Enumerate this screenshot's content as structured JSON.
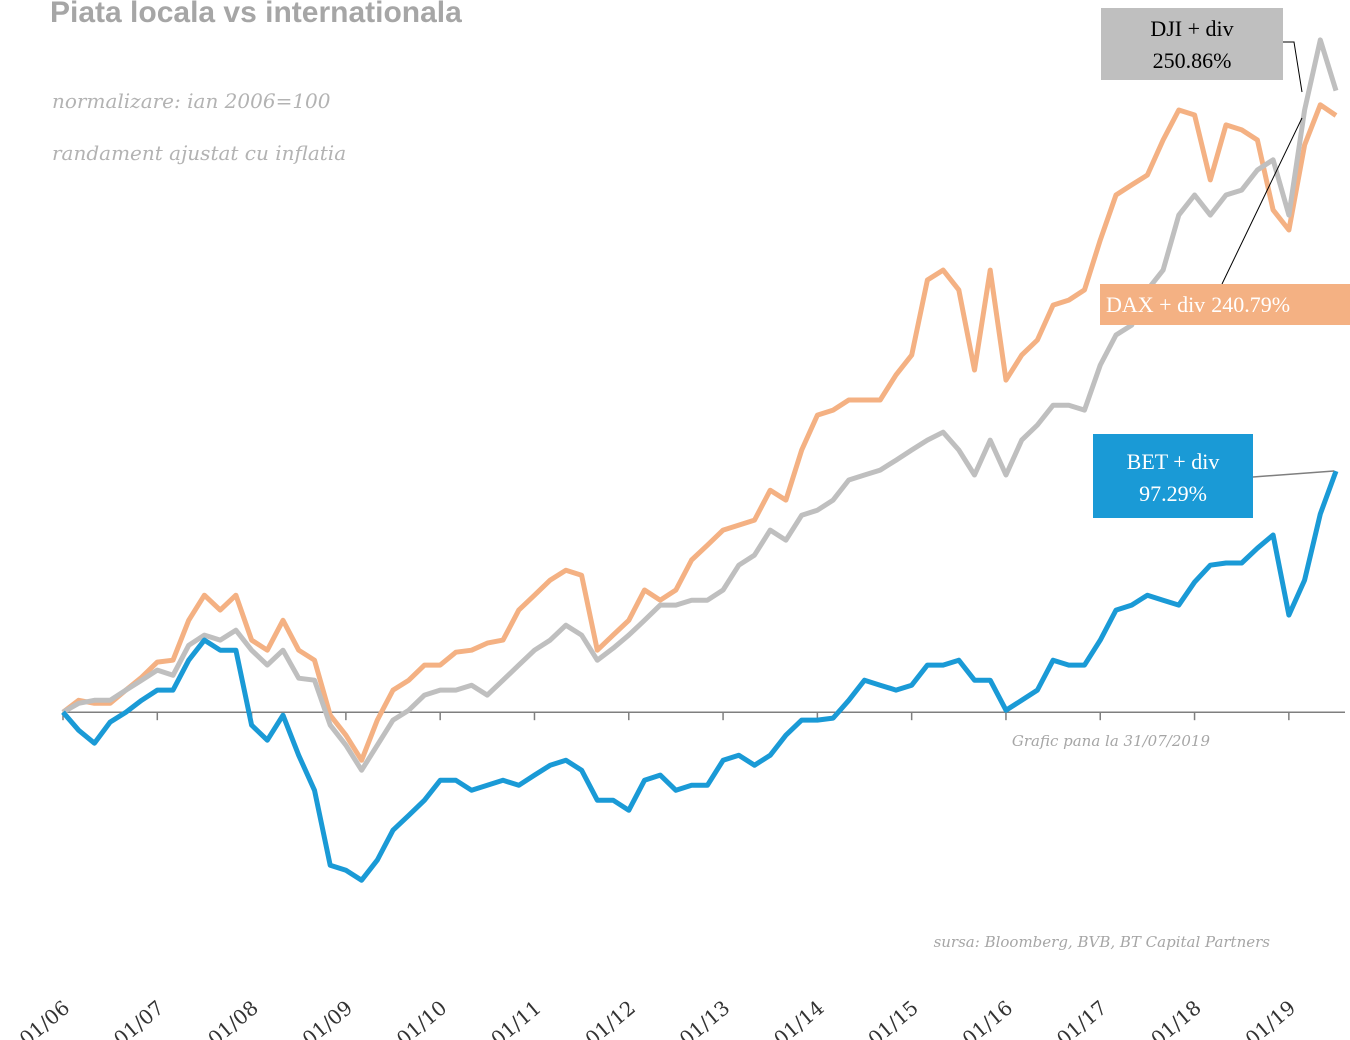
{
  "chart_data": {
    "type": "line",
    "title": "Piata locala vs internationala",
    "subtitle": [
      "normalizare: ian 2006=100",
      "randament ajustat cu inflatia"
    ],
    "annotations": [
      "Grafic pana la 31/07/2019",
      "sursa: Bloomberg, BVB, BT Capital Partners"
    ],
    "x": [
      "01/06",
      "03/06",
      "05/06",
      "07/06",
      "09/06",
      "11/06",
      "01/07",
      "03/07",
      "05/07",
      "07/07",
      "09/07",
      "11/07",
      "01/08",
      "03/08",
      "05/08",
      "07/08",
      "09/08",
      "11/08",
      "01/09",
      "03/09",
      "05/09",
      "07/09",
      "09/09",
      "11/09",
      "01/10",
      "03/10",
      "05/10",
      "07/10",
      "09/10",
      "11/10",
      "01/11",
      "03/11",
      "05/11",
      "07/11",
      "09/11",
      "11/11",
      "01/12",
      "03/12",
      "05/12",
      "07/12",
      "09/12",
      "11/12",
      "01/13",
      "03/13",
      "05/13",
      "07/13",
      "09/13",
      "11/13",
      "01/14",
      "03/14",
      "05/14",
      "07/14",
      "09/14",
      "11/14",
      "01/15",
      "03/15",
      "05/15",
      "07/15",
      "09/15",
      "11/15",
      "01/16",
      "03/16",
      "05/16",
      "07/16",
      "09/16",
      "11/16",
      "01/17",
      "03/17",
      "05/17",
      "07/17",
      "09/17",
      "11/17",
      "01/18",
      "03/18",
      "05/18",
      "07/18",
      "09/18",
      "11/18",
      "01/19",
      "03/19",
      "05/19",
      "07/19"
    ],
    "xlim": [
      "01/06",
      "07/19"
    ],
    "xticks": [
      "01/06",
      "01/07",
      "01/08",
      "01/09",
      "01/10",
      "01/11",
      "01/12",
      "01/13",
      "01/14",
      "01/15",
      "01/16",
      "01/17",
      "01/18",
      "01/19"
    ],
    "ylim": [
      -100,
      287
    ],
    "series": [
      {
        "name": "DAX + div",
        "color": "#f4b183",
        "end_label": "240.79%",
        "values": [
          0,
          4.8,
          3.6,
          3.6,
          8.9,
          14.1,
          20.2,
          21.0,
          37.1,
          47.2,
          41.2,
          47.2,
          29.1,
          25.0,
          37.1,
          25.0,
          21.0,
          -1.2,
          -9.3,
          -19.4,
          -3.2,
          8.9,
          12.9,
          19.0,
          19.0,
          24.2,
          25.0,
          27.9,
          29.1,
          41.2,
          47.2,
          53.3,
          57.3,
          55.3,
          25.0,
          31.1,
          37.1,
          49.3,
          45.2,
          49.3,
          61.4,
          67.4,
          73.5,
          75.5,
          77.5,
          89.6,
          85.6,
          105.8,
          119.9,
          121.9,
          126.0,
          126.0,
          126.0,
          136.1,
          144.1,
          174.4,
          178.4,
          170.4,
          138.1,
          178.4,
          134.0,
          144.1,
          150.2,
          164.3,
          166.3,
          170.4,
          190.6,
          208.7,
          212.8,
          216.8,
          230.9,
          243.0,
          241.0,
          214.8,
          237.0,
          235.0,
          230.9,
          202.7,
          194.6,
          228.9,
          245.1,
          240.79
        ]
      },
      {
        "name": "DJI + div",
        "color": "#bfbfbf",
        "end_label": "250.86%",
        "values": [
          0,
          3.6,
          4.8,
          4.8,
          8.9,
          12.9,
          17.0,
          14.9,
          27.0,
          31.1,
          29.1,
          33.1,
          25.0,
          19.0,
          25.0,
          13.7,
          12.9,
          -5.2,
          -13.3,
          -23.4,
          -13.3,
          -3.2,
          0.8,
          6.9,
          8.9,
          8.9,
          10.9,
          6.9,
          12.9,
          19.0,
          25.0,
          29.1,
          35.1,
          31.1,
          21.0,
          25.8,
          31.1,
          37.1,
          43.2,
          43.2,
          45.2,
          45.2,
          49.3,
          59.3,
          63.4,
          73.5,
          69.4,
          79.5,
          81.5,
          85.6,
          93.7,
          95.7,
          97.7,
          101.7,
          105.8,
          109.8,
          113.0,
          105.8,
          95.7,
          109.8,
          95.7,
          109.8,
          115.9,
          123.9,
          123.9,
          121.9,
          140.1,
          152.2,
          156.2,
          170.4,
          178.4,
          200.6,
          208.7,
          200.6,
          208.7,
          210.7,
          218.8,
          222.9,
          200.6,
          243.0,
          271.3,
          250.86
        ]
      },
      {
        "name": "BET + div",
        "color": "#1a9ad6",
        "end_label": "97.29%",
        "values": [
          0,
          -7.3,
          -12.5,
          -4.0,
          0,
          4.8,
          8.9,
          8.9,
          21.0,
          29.1,
          25.0,
          25.0,
          -5.2,
          -11.3,
          -1.2,
          -17.4,
          -31.5,
          -61.8,
          -63.8,
          -67.8,
          -59.7,
          -47.6,
          -41.6,
          -35.5,
          -27.5,
          -27.5,
          -31.5,
          -29.5,
          -27.5,
          -29.5,
          -25.4,
          -21.4,
          -19.4,
          -23.4,
          -35.5,
          -35.5,
          -39.6,
          -27.5,
          -25.4,
          -31.5,
          -29.5,
          -29.5,
          -19.4,
          -17.4,
          -21.4,
          -17.4,
          -9.3,
          -3.2,
          -3.2,
          -2.4,
          4.8,
          12.9,
          10.9,
          8.9,
          10.9,
          19.0,
          19.0,
          21.0,
          12.9,
          12.9,
          0.8,
          4.8,
          8.9,
          21.0,
          19.0,
          19.0,
          29.1,
          41.2,
          43.2,
          47.2,
          45.2,
          43.2,
          52.5,
          59.3,
          60.2,
          60.2,
          66.2,
          71.5,
          39.2,
          53.3,
          80.0,
          97.29
        ]
      }
    ]
  }
}
